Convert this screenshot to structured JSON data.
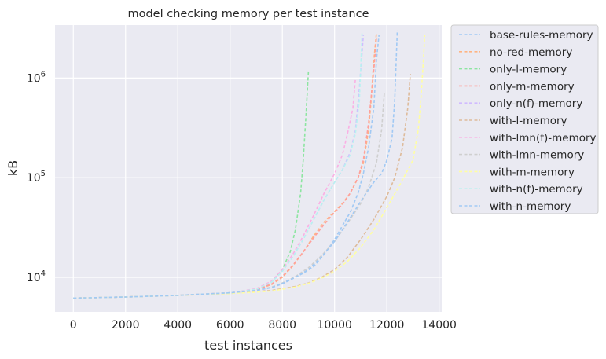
{
  "chart_data": {
    "type": "line",
    "title": "model checking memory per test instance",
    "xlabel": "test instances",
    "ylabel": "kB",
    "xlim": [
      -700,
      14100
    ],
    "ylim": [
      4500,
      3400000
    ],
    "yscale": "log",
    "x_ticks": [
      0,
      2000,
      4000,
      6000,
      8000,
      10000,
      12000,
      14000
    ],
    "y_ticks": [
      {
        "value": 10000,
        "base": "10",
        "exp": "4"
      },
      {
        "value": 100000,
        "base": "10",
        "exp": "5"
      },
      {
        "value": 1000000,
        "base": "10",
        "exp": "6"
      }
    ],
    "grid": true,
    "legend_position": "outside-right",
    "line_style": "dashed",
    "background": "#eaeaf2",
    "series": [
      {
        "name": "base-rules-memory",
        "color": "#a1c9f4",
        "x": [
          0,
          2000,
          4000,
          6000,
          7000,
          7600,
          8000,
          8400,
          8800,
          9200,
          9600,
          10000,
          10300,
          10600,
          10900,
          11100,
          11300,
          11500,
          11600,
          11700
        ],
        "y": [
          6200,
          6350,
          6600,
          7000,
          7400,
          7900,
          8600,
          9700,
          11000,
          12800,
          17000,
          24000,
          33000,
          45000,
          70000,
          110000,
          200000,
          500000,
          1500000,
          2700000
        ]
      },
      {
        "name": "no-red-memory",
        "color": "#ffb482",
        "x": [
          0,
          2000,
          4000,
          6000,
          7000,
          7600,
          8000,
          8400,
          8800,
          9200,
          9600,
          10000,
          10300,
          10600,
          10900,
          11100,
          11300,
          11400,
          11500,
          11600
        ],
        "y": [
          6200,
          6350,
          6600,
          7000,
          7500,
          8500,
          10000,
          13000,
          18000,
          26000,
          36000,
          46000,
          55000,
          70000,
          100000,
          140000,
          300000,
          600000,
          1500000,
          2800000
        ]
      },
      {
        "name": "only-l-memory",
        "color": "#8de5a1",
        "x": [
          0,
          2000,
          4000,
          6000,
          7000,
          7600,
          8000,
          8300,
          8500,
          8700,
          8800,
          8900,
          9000
        ],
        "y": [
          6200,
          6350,
          6600,
          7000,
          7600,
          9000,
          12000,
          18000,
          30000,
          70000,
          150000,
          400000,
          1200000
        ]
      },
      {
        "name": "only-m-memory",
        "color": "#ff9f9b",
        "x": [
          0,
          2000,
          4000,
          6000,
          7000,
          7600,
          8000,
          8400,
          8800,
          9200,
          9600,
          10000,
          10300,
          10600,
          10900,
          11100,
          11300,
          11500,
          11600
        ],
        "y": [
          6200,
          6350,
          6600,
          7000,
          7500,
          8600,
          10200,
          13200,
          18000,
          25000,
          34000,
          45000,
          54000,
          70000,
          100000,
          150000,
          350000,
          1200000,
          2500000
        ]
      },
      {
        "name": "only-n(f)-memory",
        "color": "#d0bbff",
        "x": [
          0,
          2000,
          4000,
          6000,
          7000,
          7600,
          8000,
          8400,
          8800,
          9200,
          9600,
          10000,
          10300,
          10600,
          10800,
          10950,
          11100
        ],
        "y": [
          6200,
          6350,
          6600,
          7000,
          7600,
          9000,
          11500,
          16000,
          24000,
          38000,
          60000,
          90000,
          120000,
          180000,
          300000,
          800000,
          2700000
        ]
      },
      {
        "name": "with-l-memory",
        "color": "#debb9b",
        "x": [
          0,
          2000,
          4000,
          6000,
          7000,
          7600,
          8000,
          8500,
          9000,
          9500,
          10000,
          10500,
          11000,
          11500,
          12000,
          12300,
          12600,
          12800,
          12900
        ],
        "y": [
          6200,
          6350,
          6600,
          6900,
          7200,
          7400,
          7700,
          8100,
          8800,
          10000,
          12000,
          16000,
          24000,
          38000,
          65000,
          100000,
          200000,
          500000,
          1100000
        ]
      },
      {
        "name": "with-lmn(f)-memory",
        "color": "#fab0e4",
        "x": [
          0,
          2000,
          4000,
          6000,
          7000,
          7600,
          8000,
          8400,
          8800,
          9200,
          9600,
          10000,
          10300,
          10500,
          10700,
          10800
        ],
        "y": [
          6200,
          6350,
          6600,
          7000,
          7700,
          9200,
          12000,
          17000,
          26000,
          42000,
          70000,
          110000,
          170000,
          280000,
          500000,
          1000000
        ]
      },
      {
        "name": "with-lmn-memory",
        "color": "#cfcfcf",
        "x": [
          0,
          2000,
          4000,
          6000,
          7000,
          7600,
          8000,
          8500,
          9000,
          9500,
          10000,
          10500,
          11000,
          11300,
          11600,
          11800,
          11900
        ],
        "y": [
          6200,
          6350,
          6600,
          7000,
          7400,
          8000,
          8800,
          10200,
          12500,
          16500,
          23000,
          35000,
          55000,
          80000,
          140000,
          300000,
          700000
        ]
      },
      {
        "name": "with-m-memory",
        "color": "#fffea3",
        "x": [
          0,
          2000,
          4000,
          6000,
          7000,
          7600,
          8000,
          8500,
          9000,
          9500,
          10000,
          10500,
          11000,
          11500,
          12000,
          12500,
          13000,
          13200,
          13300,
          13400,
          13450
        ],
        "y": [
          6200,
          6350,
          6600,
          6900,
          7100,
          7300,
          7600,
          8000,
          8700,
          9800,
          11500,
          14500,
          20000,
          30000,
          50000,
          85000,
          150000,
          300000,
          600000,
          1500000,
          2700000
        ]
      },
      {
        "name": "with-n(f)-memory",
        "color": "#b9f2f0",
        "x": [
          0,
          2000,
          4000,
          6000,
          7000,
          7600,
          8000,
          8400,
          8800,
          9200,
          9600,
          10000,
          10300,
          10600,
          10800,
          10950,
          11050
        ],
        "y": [
          6200,
          6350,
          6600,
          7000,
          7600,
          9000,
          11500,
          16000,
          24000,
          38000,
          60000,
          90000,
          120000,
          170000,
          280000,
          600000,
          2800000
        ]
      },
      {
        "name": "with-n-memory",
        "color": "#a1c9f4",
        "x": [
          0,
          2000,
          4000,
          6000,
          7000,
          7600,
          8000,
          8500,
          9000,
          9500,
          10000,
          10500,
          11000,
          11500,
          11800,
          12000,
          12200,
          12300,
          12400
        ],
        "y": [
          6200,
          6350,
          6600,
          7000,
          7400,
          7900,
          8700,
          10000,
          12000,
          16000,
          23000,
          36000,
          58000,
          90000,
          110000,
          150000,
          250000,
          600000,
          3000000
        ]
      }
    ]
  }
}
